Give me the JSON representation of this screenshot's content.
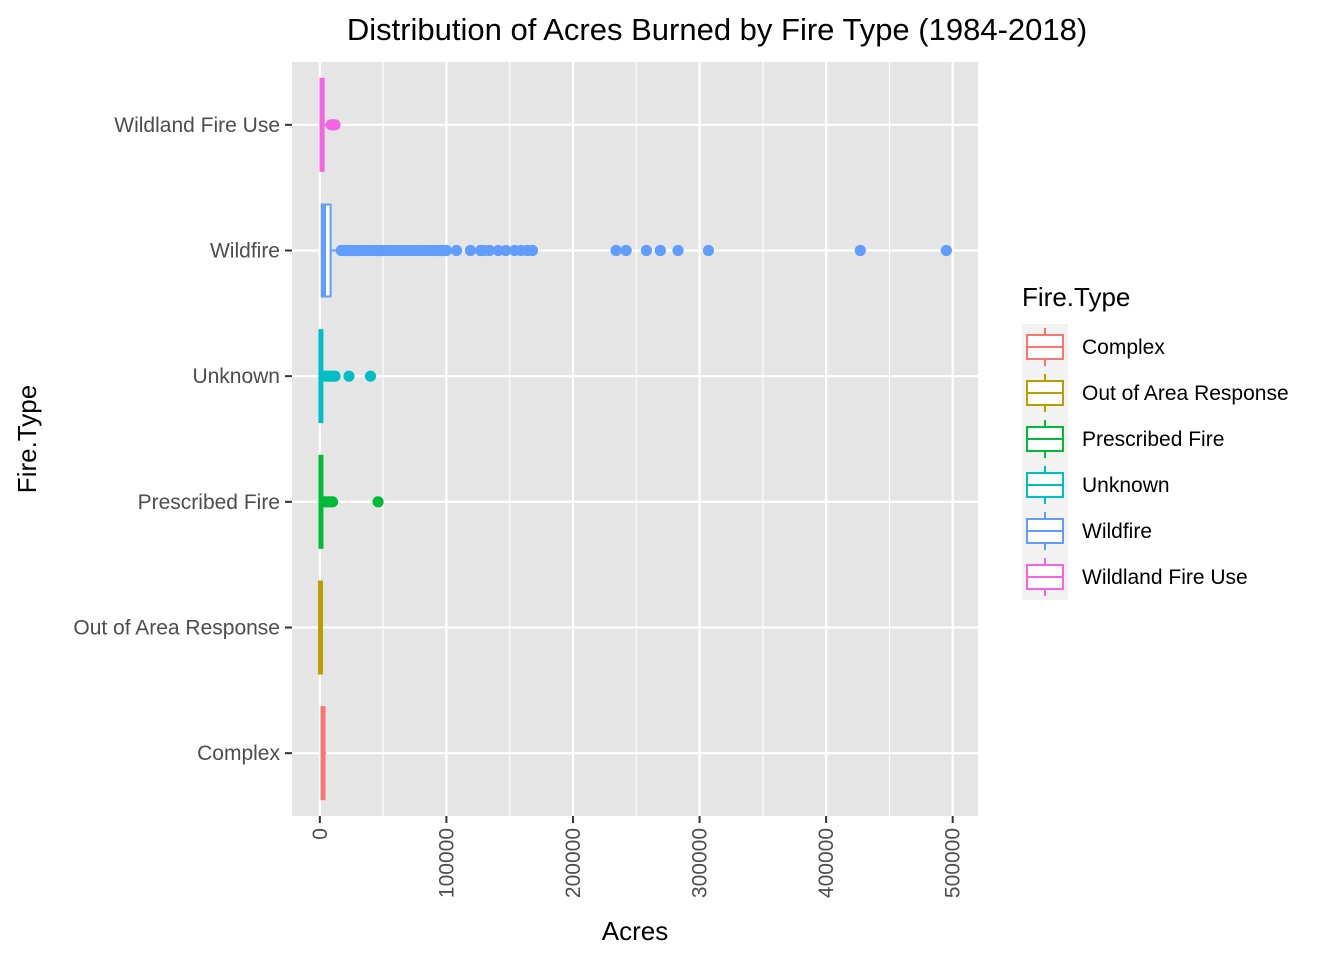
{
  "chart_data": {
    "type": "boxplot",
    "orientation": "horizontal",
    "title": "Distribution of Acres Burned by Fire Type (1984-2018)",
    "xlabel": "Acres",
    "ylabel": "Fire.Type",
    "xlim": [
      -22000,
      520000
    ],
    "x_ticks": [
      0,
      100000,
      200000,
      300000,
      400000,
      500000
    ],
    "x_tick_labels": [
      "0",
      "100000",
      "200000",
      "300000",
      "400000",
      "500000"
    ],
    "categories": [
      "Complex",
      "Out of Area Response",
      "Prescribed Fire",
      "Unknown",
      "Wildfire",
      "Wildland Fire Use"
    ],
    "grid": true,
    "panel_background": "#e5e5e5",
    "legend": {
      "title": "Fire.Type",
      "position": "right",
      "entries": [
        "Complex",
        "Out of Area Response",
        "Prescribed Fire",
        "Unknown",
        "Wildfire",
        "Wildland Fire Use"
      ]
    },
    "series": [
      {
        "name": "Complex",
        "color": "#F8766D",
        "q1": 1500,
        "median": 2500,
        "q3": 3500,
        "whisker_low": 1000,
        "whisker_high": 5000,
        "outliers": []
      },
      {
        "name": "Out of Area Response",
        "color": "#B79F00",
        "q1": 200,
        "median": 500,
        "q3": 900,
        "whisker_low": 100,
        "whisker_high": 1500,
        "outliers": []
      },
      {
        "name": "Prescribed Fire",
        "color": "#00BA38",
        "q1": 300,
        "median": 800,
        "q3": 1500,
        "whisker_low": 100,
        "whisker_high": 3000,
        "outliers": [
          4000,
          5500,
          7000,
          8500,
          10000,
          46000
        ]
      },
      {
        "name": "Unknown",
        "color": "#00BFC4",
        "q1": 200,
        "median": 600,
        "q3": 1500,
        "whisker_low": 100,
        "whisker_high": 3000,
        "outliers": [
          4000,
          6000,
          8000,
          10000,
          12000,
          23000,
          40000
        ]
      },
      {
        "name": "Wildfire",
        "color": "#619CFF",
        "q1": 1500,
        "median": 3500,
        "q3": 8500,
        "whisker_low": 1000,
        "whisker_high": 17000,
        "outliers": [
          17000,
          19000,
          21000,
          23000,
          25000,
          27000,
          29000,
          31000,
          33000,
          35000,
          37000,
          39000,
          41000,
          43000,
          45000,
          47000,
          49000,
          52000,
          55000,
          58000,
          61000,
          64000,
          67000,
          70000,
          73000,
          76000,
          79000,
          82000,
          85000,
          88000,
          91000,
          93000,
          95000,
          97000,
          100000,
          108000,
          119000,
          127000,
          130000,
          134000,
          141000,
          147000,
          154000,
          159000,
          164000,
          168000,
          234000,
          242000,
          258000,
          269000,
          283000,
          307000,
          427000,
          495000
        ]
      },
      {
        "name": "Wildland Fire Use",
        "color": "#F564E3",
        "q1": 500,
        "median": 1500,
        "q3": 3000,
        "whisker_low": 200,
        "whisker_high": 5000,
        "outliers": [
          9000,
          10000,
          11000,
          12000
        ]
      }
    ]
  }
}
